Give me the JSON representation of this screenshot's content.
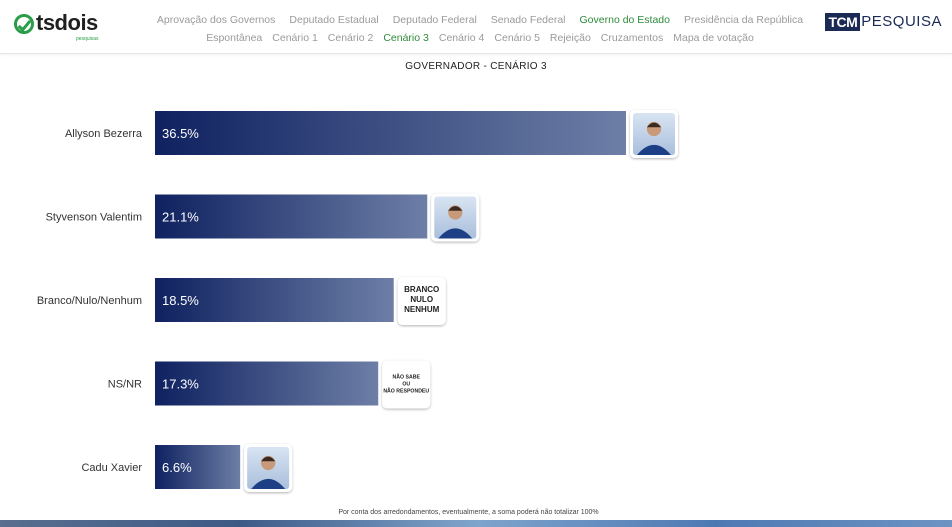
{
  "header": {
    "logo_left": "tsdois",
    "logo_left_sub": "pesquisas",
    "logo_right_box": "TCM",
    "logo_right_text": "PESQUISA",
    "nav_row1": [
      "Aprovação dos Governos",
      "Deputado Estadual",
      "Deputado Federal",
      "Senado Federal",
      "Governo do Estado",
      "Presidência da República"
    ],
    "nav_row2": [
      "Espontânea",
      "Cenário 1",
      "Cenário 2",
      "Cenário 3",
      "Cenário 4",
      "Cenário 5",
      "Rejeição",
      "Cruzamentos",
      "Mapa de votação"
    ],
    "active_row1": "Governo do Estado",
    "active_row2": "Cenário 3"
  },
  "footnote": "Por conta dos arredondamentos, eventualmente, a soma poderá não totalizar 100%",
  "colors": {
    "bar_dark": "#0f2160",
    "bar_light": "#6d7fa6",
    "active_nav": "#2e8b3a"
  },
  "chart_data": {
    "type": "bar",
    "orientation": "horizontal",
    "title": "GOVERNADOR - CENÁRIO 3",
    "categories": [
      "Allyson Bezerra",
      "Styvenson Valentim",
      "Branco/Nulo/Nenhum",
      "NS/NR",
      "Cadu Xavier"
    ],
    "values": [
      36.5,
      21.1,
      18.5,
      17.3,
      6.6
    ],
    "value_labels": [
      "36.5%",
      "21.1%",
      "18.5%",
      "17.3%",
      "6.6%"
    ],
    "badges": [
      {
        "type": "photo"
      },
      {
        "type": "photo"
      },
      {
        "type": "text",
        "lines": [
          "BRANCO",
          "NULO",
          "NENHUM"
        ]
      },
      {
        "type": "text",
        "lines": [
          "NÃO SABE",
          "OU",
          "NÃO RESPONDEU"
        ]
      },
      {
        "type": "photo"
      }
    ],
    "xlim": [
      0,
      36.5
    ],
    "grid": false,
    "legend": "none"
  }
}
